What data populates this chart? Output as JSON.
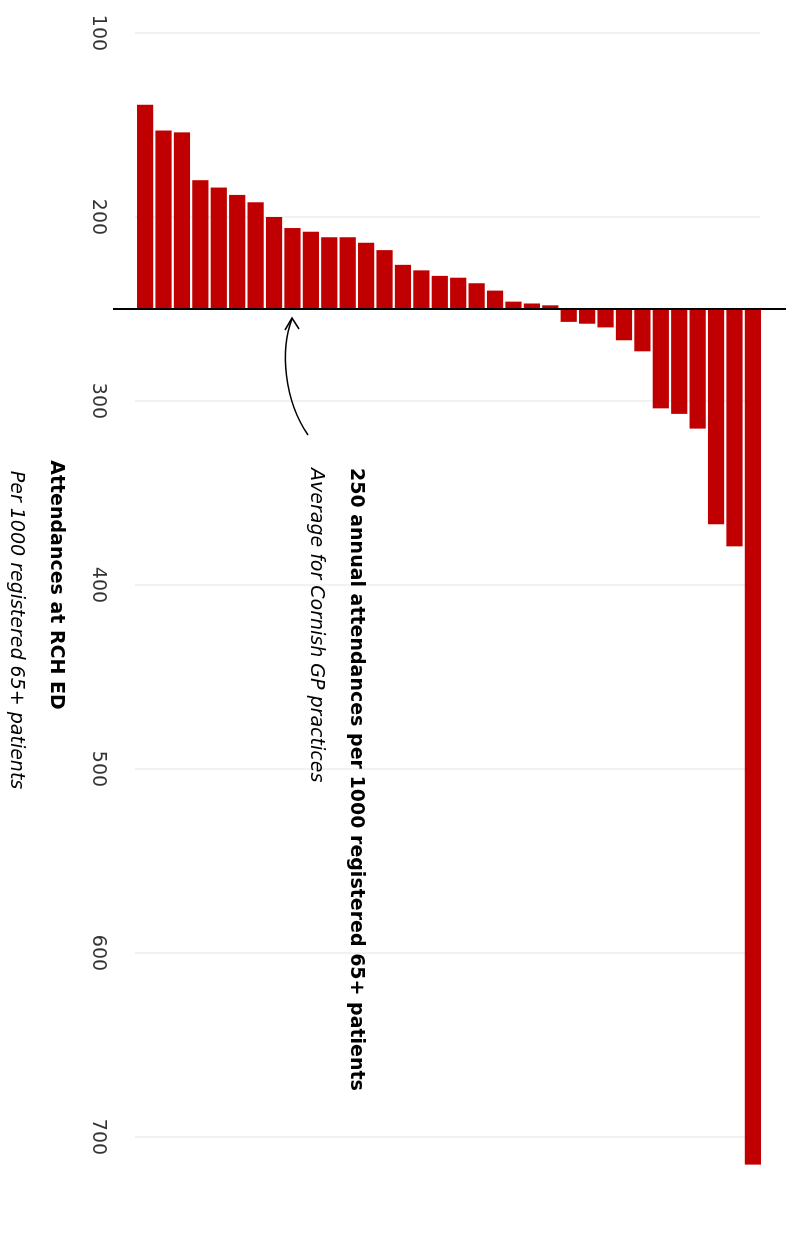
{
  "chart_data": {
    "type": "bar",
    "ylabel": "Attendances at RCH ED",
    "subtitle": "Per 1000 registered 65+ patients",
    "categories": [
      null,
      null,
      null,
      null,
      null,
      null,
      null,
      null,
      null,
      null,
      null,
      null,
      null,
      null,
      null,
      null,
      null,
      null,
      null,
      null,
      null,
      null,
      null,
      null,
      null,
      null,
      null,
      null,
      null,
      null,
      null,
      null,
      null,
      null
    ],
    "base": [
      250,
      250,
      250,
      250,
      250,
      250,
      250,
      250,
      250,
      250,
      250,
      250,
      250,
      250,
      250,
      250,
      250,
      250,
      250,
      250,
      250,
      250,
      250,
      250,
      250,
      250,
      250,
      250,
      250,
      250,
      250,
      250,
      250,
      250
    ],
    "values": [
      -111,
      -97,
      -96,
      -70,
      -66,
      -62,
      -58,
      -50,
      -44,
      -42,
      -39,
      -39,
      -36,
      -32,
      -24,
      -21,
      -18,
      -17,
      -14,
      -10,
      -4,
      -3,
      -2,
      7,
      8,
      10,
      17,
      23,
      54,
      57,
      65,
      117,
      129,
      465
    ],
    "color": "#c00000",
    "ylim": [
      700,
      100
    ],
    "yticks": [
      100,
      200,
      300,
      400,
      500,
      600,
      700
    ],
    "grid": "y",
    "ref_lines": [
      {
        "axis": "y",
        "value": 250,
        "label": "250 annual attendances per 1000 registered 65+ patients",
        "color": "#000000"
      }
    ],
    "annotations": [
      "Average for Cornish GP practices"
    ]
  }
}
